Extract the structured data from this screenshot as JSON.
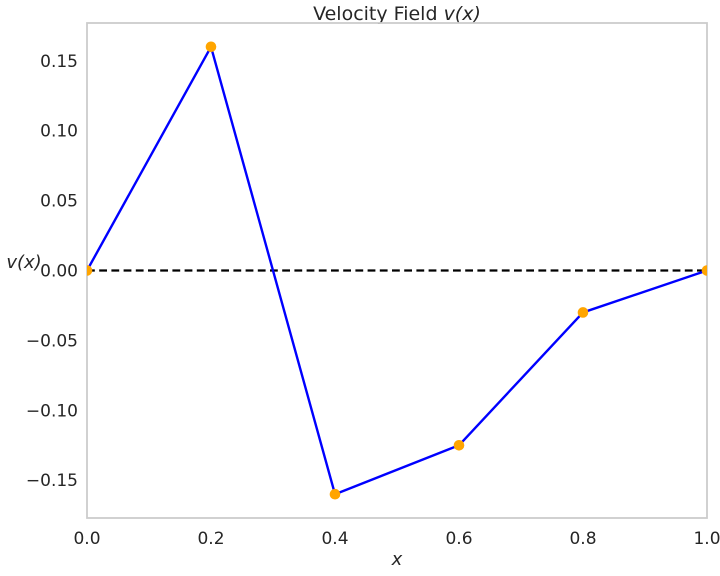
{
  "title": {
    "prefix": "Velocity Field ",
    "math": "v(x)"
  },
  "axes": {
    "xlabel": "x",
    "ylabel": "v(x)"
  },
  "chart_data": {
    "type": "line",
    "title": "Velocity Field v(x)",
    "xlabel": "x",
    "ylabel": "v(x)",
    "x": [
      0.0,
      0.2,
      0.4,
      0.6,
      0.8,
      1.0
    ],
    "series": [
      {
        "name": "v(x)",
        "values": [
          0.0,
          0.16,
          -0.16,
          -0.125,
          -0.03,
          0.0
        ],
        "line_color": "#0000ff",
        "marker": "circle",
        "marker_color": "#ffa500"
      }
    ],
    "reference_line": {
      "y": 0.0,
      "style": "dashed",
      "color": "#000000"
    },
    "xlim": [
      0.0,
      1.0
    ],
    "ylim": [
      -0.177,
      0.177
    ],
    "x_tick_values": [
      0.0,
      0.2,
      0.4,
      0.6,
      0.8,
      1.0
    ],
    "x_tick_labels": [
      "0.0",
      "0.2",
      "0.4",
      "0.6",
      "0.8",
      "1.0"
    ],
    "y_tick_values": [
      0.15,
      0.1,
      0.05,
      0.0,
      -0.05,
      -0.1,
      -0.15
    ],
    "y_tick_labels": [
      "0.15",
      "0.10",
      "0.05",
      "0.00",
      "−0.05",
      "−0.10",
      "−0.15"
    ],
    "grid": false,
    "legend": null
  },
  "colors": {
    "line": "#0000ff",
    "marker": "#ffa500",
    "reference_line": "#000000",
    "spine": "#cccccc",
    "text": "#262626",
    "background": "#ffffff"
  }
}
